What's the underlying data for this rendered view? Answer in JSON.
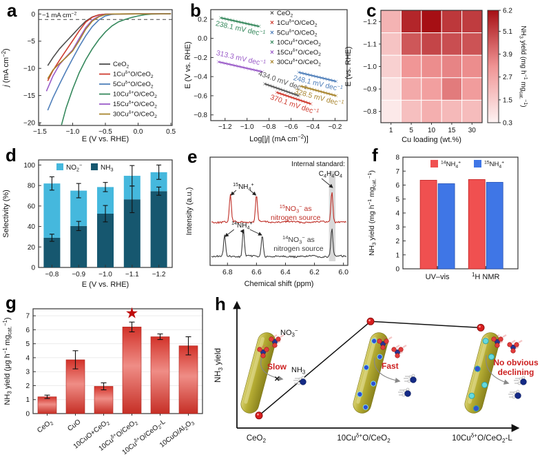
{
  "figure": {
    "panel_labels": {
      "a": "a",
      "b": "b",
      "c": "c",
      "d": "d",
      "e": "e",
      "f": "f",
      "g": "g",
      "h": "h"
    }
  },
  "colors": {
    "ceo2": "#4d4d4d",
    "cu1": "#cf3b2f",
    "cu5": "#4f7fba",
    "cu10": "#35885c",
    "cu15": "#9a5bc8",
    "cu30": "#a8842c",
    "no2_bar": "#45b8dd",
    "nh3_bar": "#16576f",
    "red_bar": "#ef4d4d",
    "blue_bar": "#3f76e6",
    "heat_dark": "#a60f14",
    "heat_light": "#fdf3f3",
    "rod": "#b2a92f",
    "accent_red": "#cc1f1f"
  },
  "chart_data": [
    {
      "panel": "a",
      "type": "line",
      "xlabel": "E (V vs. RHE)",
      "ylabel": "~j~ (mA cm^−2^)",
      "xlim": [
        -1.52,
        0.52
      ],
      "ylim": [
        -20.5,
        0.8
      ],
      "xticks": [
        -1.5,
        -1.0,
        -0.5,
        0.0,
        0.5
      ],
      "xtick_labels": [
        "−1.5",
        "−1.0",
        "−0.5",
        "0.0",
        "0.5"
      ],
      "yticks": [
        0,
        -5,
        -10,
        -15,
        -20
      ],
      "ytick_labels": [
        "0",
        "−5",
        "−10",
        "−15",
        "−20"
      ],
      "dashed_line_y": -1,
      "dashed_label": "−1 mA cm^−2^",
      "series": [
        {
          "name": "CeO_2_",
          "color": "#4d4d4d",
          "points": [
            [
              -1.38,
              -9.5
            ],
            [
              -1.3,
              -8.0
            ],
            [
              -1.2,
              -6.4
            ],
            [
              -1.1,
              -5.1
            ],
            [
              -1.0,
              -3.8
            ],
            [
              -0.9,
              -2.5
            ],
            [
              -0.8,
              -1.3
            ],
            [
              -0.7,
              -0.55
            ],
            [
              -0.6,
              -0.15
            ],
            [
              -0.5,
              -0.04
            ],
            [
              -0.3,
              0
            ],
            [
              0.5,
              0.05
            ]
          ]
        },
        {
          "name": "1Cu^δ+^O/CeO_2_",
          "color": "#cf3b2f",
          "points": [
            [
              -1.38,
              -12.3
            ],
            [
              -1.3,
              -10.4
            ],
            [
              -1.2,
              -8.5
            ],
            [
              -1.1,
              -6.7
            ],
            [
              -1.0,
              -4.9
            ],
            [
              -0.9,
              -3.1
            ],
            [
              -0.8,
              -1.5
            ],
            [
              -0.7,
              -0.6
            ],
            [
              -0.6,
              -0.15
            ],
            [
              -0.5,
              -0.03
            ],
            [
              -0.3,
              0
            ],
            [
              0.5,
              0.05
            ]
          ]
        },
        {
          "name": "5Cu^δ+^O/CeO_2_",
          "color": "#4f7fba",
          "points": [
            [
              -1.38,
              -17.7
            ],
            [
              -1.3,
              -15.4
            ],
            [
              -1.2,
              -12.9
            ],
            [
              -1.1,
              -10.5
            ],
            [
              -1.0,
              -8.2
            ],
            [
              -0.9,
              -6.0
            ],
            [
              -0.8,
              -4.0
            ],
            [
              -0.7,
              -2.3
            ],
            [
              -0.6,
              -1.1
            ],
            [
              -0.5,
              -0.35
            ],
            [
              -0.4,
              -0.08
            ],
            [
              -0.3,
              0
            ],
            [
              0.5,
              0.05
            ]
          ]
        },
        {
          "name": "10Cu^δ+^O/CeO_2_",
          "color": "#35885c",
          "points": [
            [
              -1.17,
              -20.4
            ],
            [
              -1.1,
              -17.3
            ],
            [
              -1.0,
              -13.8
            ],
            [
              -0.9,
              -10.8
            ],
            [
              -0.8,
              -8.4
            ],
            [
              -0.7,
              -6.4
            ],
            [
              -0.6,
              -4.7
            ],
            [
              -0.5,
              -3.3
            ],
            [
              -0.4,
              -2.2
            ],
            [
              -0.3,
              -1.45
            ],
            [
              -0.2,
              -1.0
            ],
            [
              -0.1,
              -0.65
            ],
            [
              0.0,
              -0.35
            ],
            [
              0.1,
              -0.12
            ],
            [
              0.2,
              -0.03
            ],
            [
              0.35,
              0.02
            ],
            [
              0.5,
              0.05
            ]
          ]
        },
        {
          "name": "15Cu^δ+^O/CeO_2_",
          "color": "#9a5bc8",
          "points": [
            [
              -1.4,
              -14.2
            ],
            [
              -1.3,
              -11.4
            ],
            [
              -1.2,
              -9.3
            ],
            [
              -1.1,
              -7.9
            ],
            [
              -1.0,
              -6.6
            ],
            [
              -0.9,
              -4.5
            ],
            [
              -0.8,
              -2.5
            ],
            [
              -0.7,
              -1.1
            ],
            [
              -0.6,
              -0.4
            ],
            [
              -0.5,
              -0.08
            ],
            [
              -0.38,
              0
            ],
            [
              0.5,
              0.04
            ]
          ]
        },
        {
          "name": "30Cu^δ+^O/CeO_2_",
          "color": "#a8842c",
          "points": [
            [
              -1.38,
              -11.9
            ],
            [
              -1.3,
              -10.3
            ],
            [
              -1.2,
              -9.1
            ],
            [
              -1.1,
              -8.0
            ],
            [
              -1.0,
              -6.8
            ],
            [
              -0.9,
              -4.9
            ],
            [
              -0.8,
              -2.8
            ],
            [
              -0.7,
              -1.3
            ],
            [
              -0.6,
              -0.5
            ],
            [
              -0.5,
              -0.1
            ],
            [
              -0.38,
              0
            ],
            [
              0.5,
              0.04
            ]
          ]
        }
      ]
    },
    {
      "panel": "b",
      "type": "tafel",
      "xlabel": "Log[|~j~| (mA cm^−2^)]",
      "ylabel": "E (V vs. RHE)",
      "xlim": [
        -1.33,
        -0.09
      ],
      "ylim": [
        -0.86,
        0.3
      ],
      "xticks": [
        -1.2,
        -1.0,
        -0.8,
        -0.6,
        -0.4,
        -0.2
      ],
      "xtick_labels": [
        "−1.2",
        "−1.0",
        "−0.8",
        "−0.6",
        "−0.4",
        "−0.2"
      ],
      "yticks": [
        0.2,
        0.0,
        -0.2,
        -0.4,
        -0.6,
        -0.8
      ],
      "ytick_labels": [
        "0.2",
        "0.0",
        "−0.2",
        "−0.4",
        "−0.6",
        "−0.8"
      ],
      "legend_items": [
        {
          "label": "CeO_2_",
          "color": "#555555"
        },
        {
          "label": "1Cu^δ+^O/CeO_2_",
          "color": "#cf3b2f"
        },
        {
          "label": "5Cu^δ+^O/CeO_2_",
          "color": "#4f7fba"
        },
        {
          "label": "10Cu^δ+^O/CeO_2_",
          "color": "#35885c"
        },
        {
          "label": "15Cu^δ+^O/CeO_2_",
          "color": "#9a5bc8"
        },
        {
          "label": "30Cu^δ+^O/CeO_2_",
          "color": "#a8842c"
        }
      ],
      "fits": [
        {
          "name": "10Cu^δ+^O/CeO_2_",
          "color": "#35885c",
          "x1": -1.24,
          "y1": 0.215,
          "x2": -0.89,
          "y2": 0.125,
          "slope_label": "238.1 mV dec^−1^",
          "side": "below"
        },
        {
          "name": "15Cu^δ+^O/CeO_2_",
          "color": "#9a5bc8",
          "x1": -1.26,
          "y1": -0.245,
          "x2": -0.86,
          "y2": -0.35,
          "slope_label": "313.3 mV dec^−1^",
          "side": "above"
        },
        {
          "name": "CeO_2_",
          "color": "#555555",
          "x1": -0.84,
          "y1": -0.475,
          "x2": -0.53,
          "y2": -0.6,
          "slope_label": "434.0 mV dec^−1^",
          "side": "above"
        },
        {
          "name": "1Cu^δ+^O/CeO_2_",
          "color": "#cf3b2f",
          "x1": -0.73,
          "y1": -0.565,
          "x2": -0.42,
          "y2": -0.685,
          "slope_label": "370.1 mV dec^−1^",
          "side": "below"
        },
        {
          "name": "5Cu^δ+^O/CeO_2_",
          "color": "#4f7fba",
          "x1": -0.53,
          "y1": -0.355,
          "x2": -0.19,
          "y2": -0.45,
          "slope_label": "248.1 mV dec^−1^",
          "side": "below"
        },
        {
          "name": "30Cu^δ+^O/CeO_2_",
          "color": "#a8842c",
          "x1": -0.51,
          "y1": -0.5,
          "x2": -0.19,
          "y2": -0.6,
          "slope_label": "328.5 mV dec^−1^",
          "side": "below"
        }
      ]
    },
    {
      "panel": "c",
      "type": "heatmap",
      "xlabel": "Cu loading (wt.%)",
      "ylabel": "E (vs. RHE)",
      "x_categories": [
        "1",
        "5",
        "10",
        "15",
        "30"
      ],
      "y_categories": [
        "−1.2",
        "−1.1",
        "−1.0",
        "−0.9",
        "−0.8"
      ],
      "values": [
        [
          2.3,
          5.7,
          6.2,
          5.3,
          5.2
        ],
        [
          1.8,
          4.6,
          5.0,
          4.8,
          4.7
        ],
        [
          1.4,
          3.2,
          3.4,
          3.6,
          3.4
        ],
        [
          0.9,
          2.6,
          2.9,
          3.8,
          3.0
        ],
        [
          0.6,
          1.9,
          2.4,
          2.1,
          2.0
        ]
      ],
      "colorbar": {
        "min": 0.3,
        "max": 6.2,
        "ticks": [
          0.3,
          1.5,
          2.7,
          3.9,
          5.1,
          6.2
        ],
        "label": "NH_3_ yield (mg h^−1^ mg_cat._^−1^)"
      }
    },
    {
      "panel": "d",
      "type": "stacked_bar",
      "xlabel": "E (V vs. RHE)",
      "ylabel": "Selectivity (%)",
      "categories": [
        "−0.8",
        "−0.9",
        "−1.0",
        "−1.1",
        "−1.2"
      ],
      "ylim": [
        0,
        105
      ],
      "yticks": [
        0,
        20,
        40,
        60,
        80,
        100
      ],
      "series": [
        {
          "name": "NO_2_^−^",
          "color": "#45b8dd",
          "values": [
            53,
            34.5,
            26,
            23,
            18.5
          ]
        },
        {
          "name": "NH_3_",
          "color": "#16576f",
          "values": [
            29,
            40.5,
            52.5,
            66.5,
            74.5
          ]
        }
      ],
      "nh3_err": [
        3.5,
        4.5,
        8,
        13,
        4
      ],
      "total_err": [
        6.5,
        7,
        4.5,
        10,
        7
      ]
    },
    {
      "panel": "e",
      "type": "nmr",
      "xlabel": "Chemical shift (ppm)",
      "ylabel": "Intensity (a.u.)",
      "xlim": [
        6.92,
        5.97
      ],
      "xticks": [
        6.8,
        6.6,
        6.4,
        6.2,
        6.0
      ],
      "xtick_labels": [
        "6.8",
        "6.6",
        "6.4",
        "6.2",
        "6.0"
      ],
      "band": {
        "from": 6.1,
        "to": 6.055
      },
      "traces": [
        {
          "name": "red",
          "color": "#bf2d25",
          "baseline": 112,
          "peaks": [
            {
              "ppm": 6.78,
              "h": 40
            },
            {
              "ppm": 6.6,
              "h": 40
            },
            {
              "ppm": 6.08,
              "h": 46
            }
          ]
        },
        {
          "name": "black",
          "color": "#3c3c3c",
          "baseline": 162,
          "peaks": [
            {
              "ppm": 6.82,
              "h": 30
            },
            {
              "ppm": 6.69,
              "h": 40
            },
            {
              "ppm": 6.56,
              "h": 32
            },
            {
              "ppm": 6.08,
              "h": 42
            }
          ]
        }
      ],
      "annotations": {
        "internal_standard": "Internal standard:",
        "standard_formula": "C_4_H_4_O_4_",
        "peak15": "^15^NH_4_^+^",
        "peak14": "^14^NH_4_^+^",
        "red_source_1": "^15^NO_3_^−^ as",
        "red_source_2": "nitrogen source",
        "black_source_1": "^14^NO_3_^−^ as",
        "black_source_2": "nitrogen source"
      }
    },
    {
      "panel": "f",
      "type": "grouped_bar",
      "ylabel": "NH_3_ yield (mg h^−1^ mg_cat._^−1^)",
      "categories": [
        "UV–vis",
        "^1^H NMR"
      ],
      "ylim": [
        0,
        8
      ],
      "yticks": [
        0,
        1,
        2,
        3,
        4,
        5,
        6,
        7,
        8
      ],
      "series": [
        {
          "name": "^14^NH_4_^+^",
          "color": "#f05050",
          "values": [
            6.35,
            6.4
          ]
        },
        {
          "name": "^15^NH_4_^+^",
          "color": "#3f76e6",
          "values": [
            6.1,
            6.2
          ]
        }
      ]
    },
    {
      "panel": "g",
      "type": "bar",
      "ylabel": "NH_3_ yield (μg h^−1^ mg_cat._^−1^)",
      "categories": [
        "CeO_2_",
        "CuO",
        "10CuO+CeO_2_",
        "10Cu^δ+^O/CeO_2_",
        "10Cu^δ+^O/CeO_2_-L",
        "10CuO/Al_2_O_3_"
      ],
      "values": [
        1.2,
        3.85,
        1.95,
        6.2,
        5.5,
        4.85
      ],
      "errors": [
        0.12,
        0.65,
        0.25,
        0.35,
        0.2,
        0.65
      ],
      "ylim": [
        0,
        7.5
      ],
      "yticks": [
        0,
        1,
        2,
        3,
        4,
        5,
        6,
        7
      ],
      "highlight_index": 3,
      "star": "★"
    },
    {
      "panel": "h",
      "type": "schematic",
      "ylabel": "NH_3_ yield",
      "categories": [
        "CeO_2_",
        "10Cu^δ+^O/CeO_2_",
        "10Cu^δ+^O/CeO_2_-L"
      ],
      "trend_points": [
        0.1,
        0.85,
        0.8
      ],
      "labels": {
        "no3": "NO_3_^−^",
        "slow": "Slow",
        "nh3": "NH_3_",
        "fast": "Fast",
        "decline1": "No obvious",
        "decline2": "declining",
        "cross": "✕"
      }
    }
  ]
}
